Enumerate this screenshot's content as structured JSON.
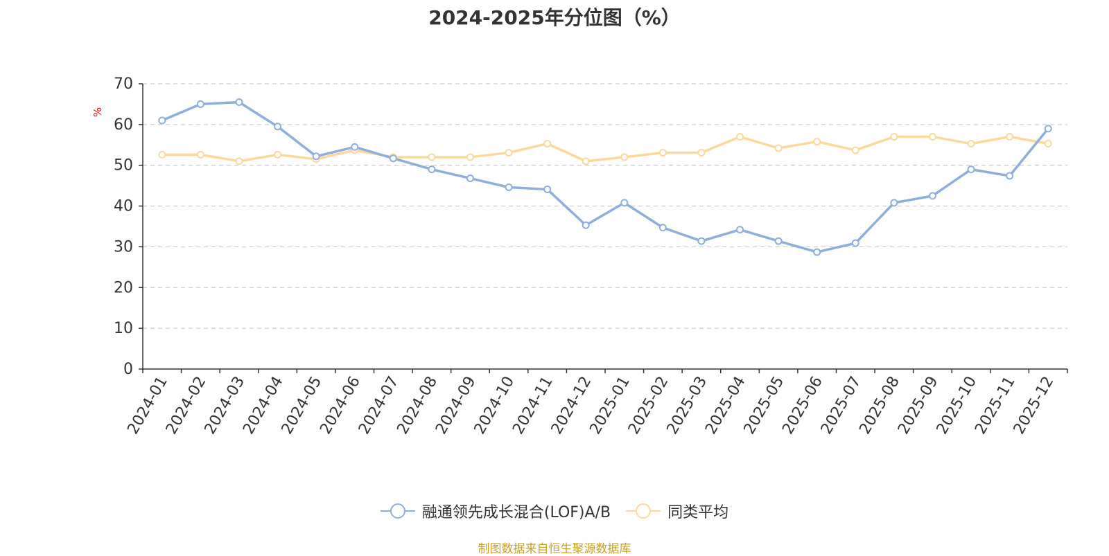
{
  "chart_data": {
    "type": "line",
    "title": "2024-2025年分位图（%）",
    "ylabel": "%",
    "xlabel": "",
    "ylim": [
      0,
      70
    ],
    "y_ticks": [
      0,
      10,
      20,
      30,
      40,
      50,
      60,
      70
    ],
    "grid": true,
    "legend_position": "bottom",
    "categories": [
      "2024-01",
      "2024-02",
      "2024-03",
      "2024-04",
      "2024-05",
      "2024-06",
      "2024-07",
      "2024-08",
      "2024-09",
      "2024-10",
      "2024-11",
      "2024-12",
      "2025-01",
      "2025-02",
      "2025-03",
      "2025-04",
      "2025-05",
      "2025-06",
      "2025-07",
      "2025-08",
      "2025-09",
      "2025-10",
      "2025-11",
      "2025-12"
    ],
    "series": [
      {
        "name": "融通领先成长混合(LOF)A/B",
        "color": "#8eaedb",
        "values": [
          61,
          65,
          65.5,
          59.5,
          52.2,
          54.5,
          51.7,
          49,
          46.8,
          44.6,
          44.1,
          35.3,
          40.8,
          34.7,
          31.4,
          34.2,
          31.4,
          28.7,
          30.9,
          40.8,
          42.5,
          49,
          47.4,
          59
        ]
      },
      {
        "name": "同类平均",
        "color": "#fbd99b",
        "values": [
          52.6,
          52.6,
          51,
          52.6,
          51.5,
          53.7,
          52,
          52,
          52,
          53.1,
          55.3,
          51,
          52,
          53.1,
          53.1,
          57,
          54.2,
          55.8,
          53.7,
          57,
          57,
          55.3,
          57,
          55.3
        ]
      }
    ]
  },
  "source_text": "制图数据来自恒生聚源数据库"
}
